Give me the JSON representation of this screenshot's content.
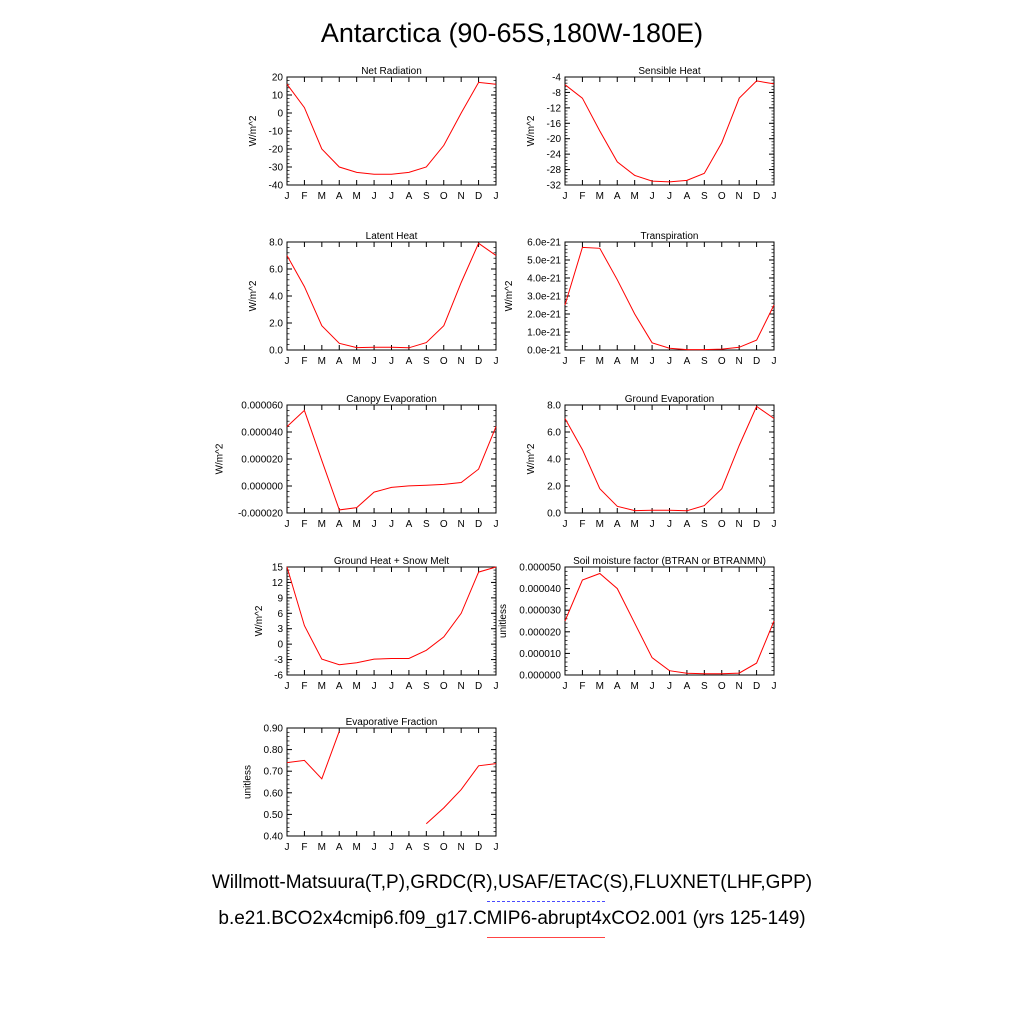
{
  "title": "Antarctica (90-65S,180W-180E)",
  "legend": {
    "observations": "Willmott-Matsuura(T,P),GRDC(R),USAF/ETAC(S),FLUXNET(LHF,GPP)",
    "model": "b.e21.BCO2x4cmip6.f09_g17.CMIP6-abrupt4xCO2.001 (yrs 125-149)",
    "observations_color": "#4b4bff",
    "model_color": "#ff0000"
  },
  "months": [
    "J",
    "F",
    "M",
    "A",
    "M",
    "J",
    "J",
    "A",
    "S",
    "O",
    "N",
    "D",
    "J"
  ],
  "chart_data": [
    {
      "type": "line",
      "title": "Net Radiation",
      "ylabel": "W/m^2",
      "ylim": [
        -40,
        20
      ],
      "yticks": [
        "20",
        "10",
        "0",
        "-10",
        "-20",
        "-30",
        "-40"
      ],
      "ytick_values": [
        20,
        10,
        0,
        -10,
        -20,
        -30,
        -40
      ],
      "series": [
        {
          "values": [
            16,
            3,
            -20,
            -30,
            -33,
            -34,
            -34,
            -33,
            -30,
            -18,
            0,
            17,
            16
          ]
        }
      ]
    },
    {
      "type": "line",
      "title": "Sensible Heat",
      "ylabel": "W/m^2",
      "ylim": [
        -32,
        -4
      ],
      "yticks": [
        "-4",
        "-8",
        "-12",
        "-16",
        "-20",
        "-24",
        "-28",
        "-32"
      ],
      "ytick_values": [
        -4,
        -8,
        -12,
        -16,
        -20,
        -24,
        -28,
        -32
      ],
      "series": [
        {
          "values": [
            -6,
            -9.5,
            -18,
            -26,
            -29.5,
            -31,
            -31.2,
            -30.8,
            -29,
            -21,
            -9.5,
            -5,
            -5.8
          ]
        }
      ]
    },
    {
      "type": "line",
      "title": "Latent Heat",
      "ylabel": "W/m^2",
      "ylim": [
        0,
        8
      ],
      "yticks": [
        "8.0",
        "6.0",
        "4.0",
        "2.0",
        "0.0"
      ],
      "ytick_values": [
        8,
        6,
        4,
        2,
        0
      ],
      "series": [
        {
          "values": [
            7,
            4.7,
            1.8,
            0.5,
            0.18,
            0.2,
            0.2,
            0.16,
            0.55,
            1.8,
            5,
            7.9,
            7
          ]
        }
      ]
    },
    {
      "type": "line",
      "title": "Transpiration",
      "ylabel": "W/m^2",
      "ylim": [
        0,
        6e-21
      ],
      "yticks": [
        "6.0e-21",
        "5.0e-21",
        "4.0e-21",
        "3.0e-21",
        "2.0e-21",
        "1.0e-21",
        "0.0e-21"
      ],
      "ytick_values": [
        6e-21,
        5e-21,
        4e-21,
        3e-21,
        2e-21,
        1e-21,
        0
      ],
      "series": [
        {
          "values": [
            2.5e-21,
            5.7e-21,
            5.65e-21,
            3.9e-21,
            2e-21,
            4e-22,
            1e-22,
            2e-23,
            2e-23,
            5e-23,
            1.5e-22,
            5.5e-22,
            2.5e-21
          ]
        }
      ]
    },
    {
      "type": "line",
      "title": "Canopy Evaporation",
      "ylabel": "W/m^2",
      "ylim": [
        -2e-05,
        6e-05
      ],
      "yticks": [
        "0.000060",
        "0.000040",
        "0.000020",
        "0.000000",
        "-0.000020"
      ],
      "ytick_values": [
        6e-05,
        4e-05,
        2e-05,
        0,
        -2e-05
      ],
      "series": [
        {
          "values": [
            4.4e-05,
            5.6e-05,
            1.9e-05,
            -1.77e-05,
            -1.6e-05,
            -4.5e-06,
            -1e-06,
            1e-07,
            5e-07,
            1.2e-06,
            2.6e-06,
            1.25e-05,
            4.4e-05
          ]
        }
      ]
    },
    {
      "type": "line",
      "title": "Ground Evaporation",
      "ylabel": "W/m^2",
      "ylim": [
        0,
        8
      ],
      "yticks": [
        "8.0",
        "6.0",
        "4.0",
        "2.0",
        "0.0"
      ],
      "ytick_values": [
        8,
        6,
        4,
        2,
        0
      ],
      "series": [
        {
          "values": [
            7,
            4.7,
            1.8,
            0.5,
            0.18,
            0.2,
            0.2,
            0.16,
            0.55,
            1.8,
            5,
            7.9,
            7
          ]
        }
      ]
    },
    {
      "type": "line",
      "title": "Ground Heat + Snow Melt",
      "ylabel": "W/m^2",
      "ylim": [
        -6,
        15
      ],
      "yticks": [
        "15",
        "12",
        "9",
        "6",
        "3",
        "0",
        "-3",
        "-6"
      ],
      "ytick_values": [
        15,
        12,
        9,
        6,
        3,
        0,
        -3,
        -6
      ],
      "series": [
        {
          "values": [
            15,
            3.6,
            -2.9,
            -4,
            -3.6,
            -2.9,
            -2.8,
            -2.8,
            -1.2,
            1.4,
            6,
            14,
            15
          ]
        }
      ]
    },
    {
      "type": "line",
      "title": "Soil moisture factor (BTRAN or BTRANMN)",
      "ylabel": "unitless",
      "ylim": [
        0,
        5e-05
      ],
      "yticks": [
        "0.000050",
        "0.000040",
        "0.000030",
        "0.000020",
        "0.000010",
        "0.000000"
      ],
      "ytick_values": [
        5e-05,
        4e-05,
        3e-05,
        2e-05,
        1e-05,
        0
      ],
      "series": [
        {
          "values": [
            2.5e-05,
            4.4e-05,
            4.7e-05,
            4e-05,
            2.4e-05,
            8e-06,
            2e-06,
            8e-07,
            6e-07,
            6e-07,
            9e-07,
            5.5e-06,
            2.5e-05
          ]
        }
      ]
    },
    {
      "type": "line",
      "title": "Evaporative Fraction",
      "ylabel": "unitless",
      "ylim": [
        0.4,
        0.9
      ],
      "yticks": [
        "0.90",
        "0.80",
        "0.70",
        "0.60",
        "0.50",
        "0.40"
      ],
      "ytick_values": [
        0.9,
        0.8,
        0.7,
        0.6,
        0.5,
        0.4
      ],
      "series": [
        {
          "values": [
            0.74,
            0.75,
            0.665,
            0.885,
            null,
            null,
            null,
            null,
            0.457,
            0.53,
            0.615,
            0.725,
            0.735
          ]
        }
      ]
    }
  ]
}
